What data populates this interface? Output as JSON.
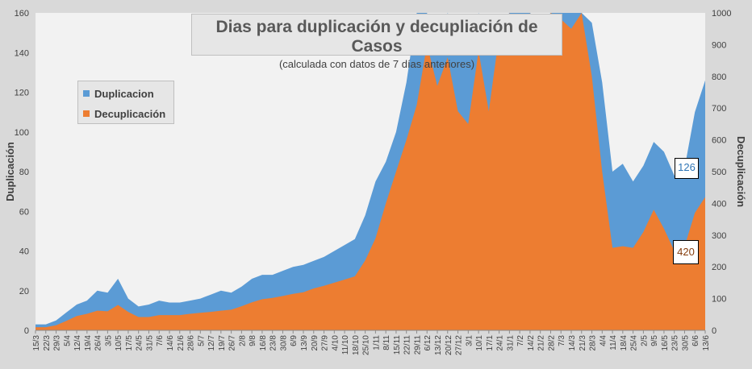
{
  "chart_data": {
    "type": "area",
    "title": "Dias para duplicación y decupliación de Casos",
    "subtitle": "(calculada con datos de 7 días anteriores)",
    "ylabel": "Duplicación",
    "y2label": "Decuplicación",
    "ylim": [
      0,
      160
    ],
    "y2lim": [
      0,
      1000
    ],
    "yticks": [
      "0",
      "20",
      "40",
      "60",
      "80",
      "100",
      "120",
      "140",
      "160"
    ],
    "y2ticks": [
      "0",
      "100",
      "200",
      "300",
      "400",
      "500",
      "600",
      "700",
      "800",
      "900",
      "1000"
    ],
    "grid": false,
    "legend_position": "top-left",
    "categories": [
      "15/3",
      "22/3",
      "29/3",
      "5/4",
      "12/4",
      "19/4",
      "26/4",
      "3/5",
      "10/5",
      "17/5",
      "24/5",
      "31/5",
      "7/6",
      "14/6",
      "21/6",
      "28/6",
      "5/7",
      "12/7",
      "19/7",
      "26/7",
      "2/8",
      "9/8",
      "16/8",
      "23/8",
      "30/8",
      "6/9",
      "13/9",
      "20/9",
      "27/9",
      "4/10",
      "11/10",
      "18/10",
      "25/10",
      "1/11",
      "8/11",
      "15/11",
      "22/11",
      "29/11",
      "6/12",
      "13/12",
      "20/12",
      "27/12",
      "3/1",
      "10/1",
      "17/1",
      "24/1",
      "31/1",
      "7/2",
      "14/2",
      "21/2",
      "28/2",
      "7/3",
      "14/3",
      "21/3",
      "28/3",
      "4/4",
      "11/4",
      "18/4",
      "25/4",
      "2/5",
      "9/5",
      "16/5",
      "23/5",
      "30/5",
      "6/6",
      "13/6"
    ],
    "series": [
      {
        "name": "Duplicacion",
        "axis": "left",
        "color": "#5b9bd5",
        "values": [
          3,
          3,
          5,
          9,
          13,
          15,
          20,
          19,
          26,
          16,
          12,
          13,
          15,
          14,
          14,
          15,
          16,
          18,
          20,
          19,
          22,
          26,
          28,
          28,
          30,
          32,
          33,
          35,
          37,
          40,
          43,
          46,
          58,
          75,
          85,
          100,
          125,
          160,
          160,
          140,
          160,
          150,
          140,
          160,
          145,
          155,
          160,
          160,
          160,
          155,
          160,
          160,
          160,
          165,
          155,
          125,
          80,
          84,
          75,
          83,
          95,
          90,
          78,
          82,
          110,
          126
        ]
      },
      {
        "name": "Decuplicación",
        "axis": "right",
        "color": "#ed7d31",
        "values": [
          10,
          10,
          16,
          30,
          45,
          52,
          62,
          60,
          80,
          58,
          42,
          42,
          48,
          48,
          48,
          52,
          55,
          58,
          62,
          65,
          76,
          88,
          98,
          102,
          108,
          115,
          120,
          132,
          140,
          150,
          160,
          170,
          220,
          290,
          400,
          500,
          600,
          710,
          900,
          770,
          860,
          690,
          650,
          880,
          690,
          930,
          1000,
          900,
          1000,
          890,
          1000,
          980,
          950,
          1000,
          800,
          500,
          260,
          265,
          260,
          310,
          380,
          320,
          250,
          265,
          370,
          420
        ]
      }
    ],
    "last_value_labels": {
      "duplicacion": "126",
      "decuplicacion": "420"
    }
  }
}
